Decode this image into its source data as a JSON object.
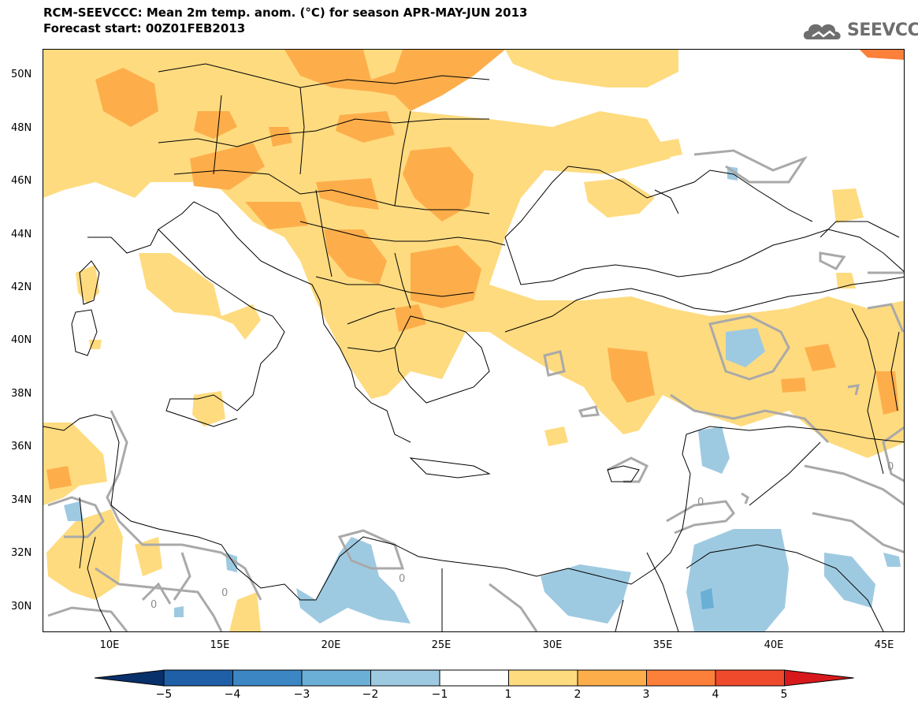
{
  "header": {
    "title": "RCM-SEEVCCC: Mean 2m temp. anom. (°C) for season APR-MAY-JUN 2013",
    "subtitle": "Forecast start: 00Z01FEB2013"
  },
  "logo": {
    "text": "SEEVCCC",
    "icon": "cloud-logo-icon"
  },
  "map": {
    "lat_labels": [
      "50N",
      "48N",
      "46N",
      "44N",
      "42N",
      "40N",
      "38N",
      "36N",
      "34N",
      "32N",
      "30N"
    ],
    "lon_labels": [
      "10E",
      "15E",
      "20E",
      "25E",
      "30E",
      "35E",
      "40E",
      "45E"
    ],
    "contour_label": "0",
    "colors": {
      "w1": "#fedb7f",
      "w2": "#fdae4b",
      "w3": "#fc7f3a",
      "c1": "#9ecae1",
      "c2": "#6baed6",
      "contour": "#a9a9a9",
      "border": "#000000"
    }
  },
  "colorbar": {
    "labels": [
      "−5",
      "−4",
      "−3",
      "−2",
      "−1",
      "1",
      "2",
      "3",
      "4",
      "5"
    ],
    "colors": [
      "#08306b",
      "#1f5fa8",
      "#3c86c4",
      "#6baed6",
      "#9ecae1",
      "#ffffff",
      "#fedb7f",
      "#fdae4b",
      "#fc7f3a",
      "#f04a2c",
      "#d7191c"
    ]
  }
}
